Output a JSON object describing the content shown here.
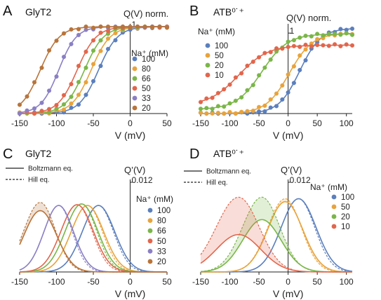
{
  "chart_data": [
    {
      "type": "line",
      "panel": "A",
      "title": "GlyT2",
      "xlabel": "V (mV)",
      "ylabel": "Q(V) norm.",
      "xlim": [
        -150,
        50
      ],
      "ylim": [
        0,
        1
      ],
      "xticks": [
        "-150",
        "-100",
        "-50",
        "0",
        "50"
      ],
      "ytick_label": "1",
      "legend_title": "Na⁺ (mM)",
      "legend_position": "right",
      "model": "boltzmann",
      "series": [
        {
          "name": "100",
          "color": "#5b7fbd",
          "v_half": -43,
          "slope": 13,
          "baseline": 0.0,
          "top": 1.0,
          "points_x": [
            -150,
            -140,
            -130,
            -120,
            -110,
            -100,
            -90,
            -80,
            -70,
            -60,
            -50,
            -40,
            -30,
            -20,
            -10,
            0,
            10,
            20,
            30,
            40,
            50
          ]
        },
        {
          "name": "80",
          "color": "#e8a33c",
          "v_half": -53,
          "slope": 13,
          "baseline": 0.0,
          "top": 1.0,
          "points_x": [
            -150,
            -140,
            -130,
            -120,
            -110,
            -100,
            -90,
            -80,
            -70,
            -60,
            -50,
            -40,
            -30,
            -20,
            -10,
            0,
            10,
            20,
            30,
            40,
            50
          ]
        },
        {
          "name": "66",
          "color": "#7ab648",
          "v_half": -62,
          "slope": 13,
          "baseline": 0.0,
          "top": 1.0,
          "points_x": [
            -150,
            -140,
            -130,
            -120,
            -110,
            -100,
            -90,
            -80,
            -70,
            -60,
            -50,
            -40,
            -30,
            -20,
            -10,
            0,
            10,
            20,
            30,
            40,
            50
          ]
        },
        {
          "name": "50",
          "color": "#e2664c",
          "v_half": -72,
          "slope": 13,
          "baseline": 0.0,
          "top": 1.0,
          "points_x": [
            -150,
            -140,
            -130,
            -120,
            -110,
            -100,
            -90,
            -80,
            -70,
            -60,
            -50,
            -40,
            -30,
            -20,
            -10,
            0,
            10,
            20,
            30,
            40,
            50
          ]
        },
        {
          "name": "33",
          "color": "#8a7fc4",
          "v_half": -97,
          "slope": 12,
          "baseline": 0.0,
          "top": 1.0,
          "points_x": [
            -150,
            -140,
            -130,
            -120,
            -110,
            -100,
            -90,
            -80,
            -70,
            -60,
            -50,
            -40,
            -30,
            -20,
            -10,
            0,
            10,
            20,
            30,
            40,
            50
          ]
        },
        {
          "name": "20",
          "color": "#b8743a",
          "v_half": -122,
          "slope": 13,
          "baseline": 0.0,
          "top": 1.0,
          "points_x": [
            -150,
            -140,
            -130,
            -120,
            -110,
            -100,
            -90,
            -80,
            -70,
            -60,
            -50,
            -40,
            -30,
            -20,
            -10,
            0,
            10,
            20,
            30,
            40,
            50
          ]
        }
      ]
    },
    {
      "type": "line",
      "panel": "B",
      "title": "ATB⁰˙⁺",
      "xlabel": "V (mV)",
      "ylabel": "Q(V) norm.",
      "xlim": [
        -150,
        110
      ],
      "ylim": [
        0,
        1.08
      ],
      "xticks": [
        "-150",
        "-100",
        "-50",
        "0",
        "50",
        "100"
      ],
      "ytick_label": "1",
      "legend_title": "Na⁺ (mM)",
      "legend_position": "top-left",
      "model": "boltzmann",
      "series": [
        {
          "name": "100",
          "color": "#5b7fbd",
          "v_half": 20,
          "slope": 18,
          "baseline": 0.0,
          "top": 1.06,
          "points_x": [
            -150,
            -140,
            -130,
            -120,
            -110,
            -100,
            -90,
            -80,
            -70,
            -60,
            -50,
            -40,
            -30,
            -20,
            -10,
            0,
            10,
            20,
            30,
            40,
            50,
            60,
            70,
            80,
            90,
            100,
            110
          ]
        },
        {
          "name": "50",
          "color": "#e8a33c",
          "v_half": 2,
          "slope": 20,
          "baseline": 0.0,
          "top": 1.0,
          "points_x": [
            -150,
            -140,
            -130,
            -120,
            -110,
            -100,
            -90,
            -80,
            -70,
            -60,
            -50,
            -40,
            -30,
            -20,
            -10,
            0,
            10,
            20,
            30,
            40,
            50,
            60,
            70,
            80,
            90,
            100,
            110
          ]
        },
        {
          "name": "20",
          "color": "#7ab648",
          "v_half": -45,
          "slope": 22,
          "baseline": 0.05,
          "top": 0.99,
          "points_x": [
            -150,
            -140,
            -130,
            -120,
            -110,
            -100,
            -90,
            -80,
            -70,
            -60,
            -50,
            -40,
            -30,
            -20,
            -10,
            0,
            10,
            20,
            30,
            40,
            50,
            60,
            70,
            80,
            90,
            100,
            110
          ]
        },
        {
          "name": "10",
          "color": "#e2664c",
          "v_half": -85,
          "slope": 25,
          "baseline": 0.1,
          "top": 0.85,
          "points_x": [
            -150,
            -140,
            -130,
            -120,
            -110,
            -100,
            -90,
            -80,
            -70,
            -60,
            -50,
            -40,
            -30,
            -20,
            -10,
            0,
            10,
            20,
            30,
            40,
            50,
            60,
            70,
            80,
            90,
            100,
            110
          ]
        }
      ]
    },
    {
      "type": "line",
      "panel": "C",
      "title": "GlyT2",
      "xlabel": "V (mV)",
      "ylabel": "Q’(V)",
      "xlim": [
        -150,
        50
      ],
      "ylim": [
        0,
        0.012
      ],
      "xticks": [
        "-150",
        "-100",
        "-50",
        "0",
        "50"
      ],
      "ytick_label": "0.012",
      "legend_title": "Na⁺ (mM)",
      "legend_position": "right",
      "line_styles": [
        {
          "label": "Boltzmann eq.",
          "style": "solid"
        },
        {
          "label": "Hill eq.",
          "style": "dashed"
        }
      ],
      "model": "derivative",
      "series": [
        {
          "name": "100",
          "color": "#5b7fbd",
          "peak_v": -43,
          "peak": 0.0089,
          "width": 22,
          "hill_peak": 0.0089
        },
        {
          "name": "80",
          "color": "#e8a33c",
          "peak_v": -58,
          "peak": 0.0089,
          "width": 22,
          "hill_peak": 0.0089
        },
        {
          "name": "66",
          "color": "#7ab648",
          "peak_v": -66,
          "peak": 0.0091,
          "width": 22,
          "hill_peak": 0.0091
        },
        {
          "name": "50",
          "color": "#e2664c",
          "peak_v": -72,
          "peak": 0.009,
          "width": 22,
          "hill_peak": 0.009
        },
        {
          "name": "33",
          "color": "#8a7fc4",
          "peak_v": -97,
          "peak": 0.0089,
          "width": 20,
          "hill_peak": 0.0089
        },
        {
          "name": "20",
          "color": "#b8743a",
          "peak_v": -122,
          "peak": 0.0082,
          "width": 22,
          "hill_peak": 0.0093
        }
      ]
    },
    {
      "type": "line",
      "panel": "D",
      "title": "ATB⁰˙⁺",
      "xlabel": "V (mV)",
      "ylabel": "Q’(V)",
      "xlim": [
        -150,
        110
      ],
      "ylim": [
        0,
        0.012
      ],
      "xticks": [
        "-150",
        "-100",
        "-50",
        "0",
        "50",
        "100"
      ],
      "ytick_label": "0.012",
      "legend_title": "Na⁺ (mM)",
      "legend_position": "top-right",
      "line_styles": [
        {
          "label": "Boltzmann eq.",
          "style": "solid"
        },
        {
          "label": "Hill eq.",
          "style": "dashed"
        }
      ],
      "model": "derivative",
      "series": [
        {
          "name": "100",
          "color": "#5b7fbd",
          "peak_v": 18,
          "peak": 0.0098,
          "width": 30,
          "hill_peak": 0.0098
        },
        {
          "name": "50",
          "color": "#e8a33c",
          "peak_v": -5,
          "peak": 0.0094,
          "width": 30,
          "hill_peak": 0.0098
        },
        {
          "name": "20",
          "color": "#7ab648",
          "peak_v": -45,
          "peak": 0.007,
          "width": 33,
          "hill_peak": 0.01
        },
        {
          "name": "10",
          "color": "#e2664c",
          "peak_v": -85,
          "peak": 0.005,
          "width": 38,
          "hill_peak": 0.01
        }
      ]
    }
  ]
}
